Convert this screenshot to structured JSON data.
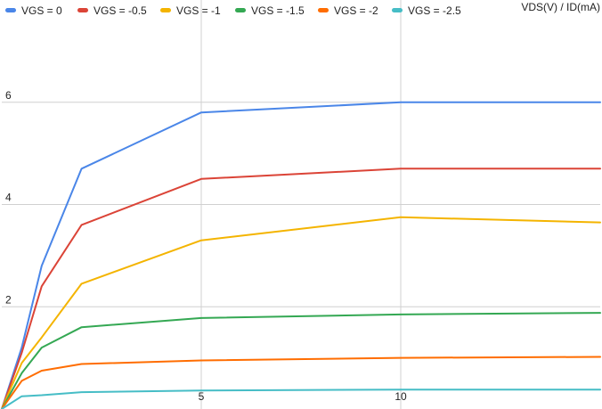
{
  "chart_data": {
    "type": "line",
    "title": "",
    "axis_title": "VDS(V) / ID(mA)",
    "xlabel": "",
    "ylabel": "",
    "xlim": [
      0,
      15
    ],
    "ylim": [
      0,
      8
    ],
    "x_ticks": [
      5,
      10
    ],
    "y_ticks": [
      2,
      4,
      6
    ],
    "grid": true,
    "legend_position": "top",
    "x": [
      0,
      0.5,
      1,
      2,
      5,
      10,
      15
    ],
    "series": [
      {
        "name": "VGS = 0",
        "color": "#4a86e8",
        "values": [
          0,
          1.2,
          2.8,
          4.7,
          5.8,
          6.0,
          6.0
        ]
      },
      {
        "name": "VGS = -0.5",
        "color": "#db4437",
        "values": [
          0,
          1.1,
          2.4,
          3.6,
          4.5,
          4.7,
          4.7
        ]
      },
      {
        "name": "VGS = -1",
        "color": "#f4b400",
        "values": [
          0,
          0.9,
          1.4,
          2.45,
          3.3,
          3.75,
          3.65
        ]
      },
      {
        "name": "VGS = -1.5",
        "color": "#34a853",
        "values": [
          0,
          0.7,
          1.2,
          1.6,
          1.78,
          1.85,
          1.88
        ]
      },
      {
        "name": "VGS = -2",
        "color": "#ff6d01",
        "values": [
          0,
          0.55,
          0.75,
          0.88,
          0.95,
          1.0,
          1.02
        ]
      },
      {
        "name": "VGS = -2.5",
        "color": "#46bdc6",
        "values": [
          0,
          0.25,
          0.27,
          0.33,
          0.36,
          0.38,
          0.38
        ]
      }
    ]
  }
}
